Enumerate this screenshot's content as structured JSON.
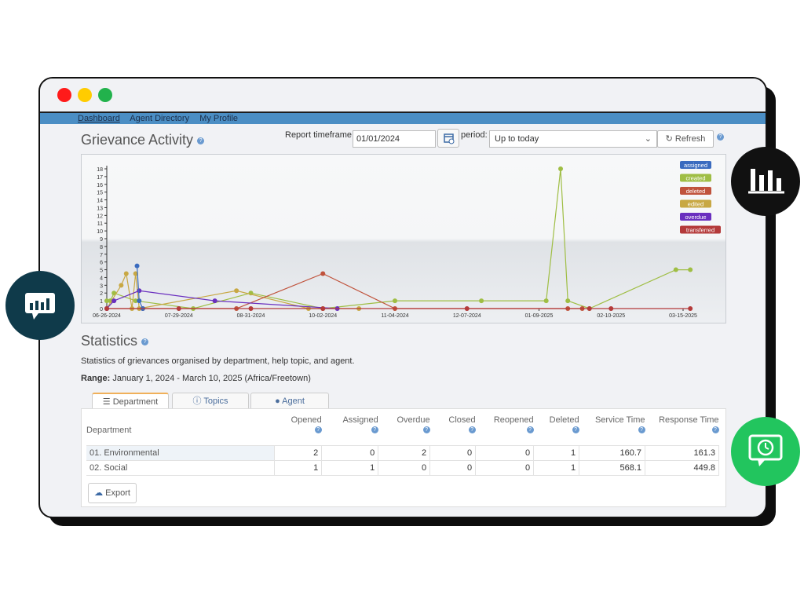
{
  "nav": {
    "items": [
      "Dashboard",
      "Agent Directory",
      "My Profile"
    ]
  },
  "page": {
    "title": "Grievance Activity",
    "timeframe_label": "Report timeframe:",
    "timeframe_value": "01/01/2024",
    "period_label": "period:",
    "period_value": "Up to today",
    "refresh_label": "Refresh",
    "help_glyph": "?"
  },
  "chart_data": {
    "type": "line",
    "x_tick_labels": [
      "06-26-2024",
      "07-29-2024",
      "08-31-2024",
      "10-02-2024",
      "11-04-2024",
      "12-07-2024",
      "01-09-2025",
      "02-10-2025",
      "03-15-2025"
    ],
    "y_ticks": [
      0,
      1,
      2,
      3,
      4,
      5,
      6,
      7,
      8,
      9,
      10,
      11,
      12,
      13,
      14,
      15,
      16,
      17,
      18
    ],
    "ylim": [
      0,
      18
    ],
    "grid": false,
    "legend_position": "top-right",
    "series": [
      {
        "name": "assigned",
        "color": "#3a6bbf"
      },
      {
        "name": "created",
        "color": "#9fbe44"
      },
      {
        "name": "deleted",
        "color": "#c0533c"
      },
      {
        "name": "edited",
        "color": "#c8a844"
      },
      {
        "name": "overdue",
        "color": "#6a2fbf"
      },
      {
        "name": "transferred",
        "color": "#b43a3a"
      }
    ]
  },
  "statistics": {
    "title": "Statistics",
    "description": "Statistics of grievances organised by department, help topic, and agent.",
    "range_label": "Range:",
    "range_value": "January 1, 2024 - March 10, 2025 (Africa/Freetown)",
    "tabs": [
      "Department",
      "Topics",
      "Agent"
    ],
    "columns": [
      "Department",
      "Opened",
      "Assigned",
      "Overdue",
      "Closed",
      "Reopened",
      "Deleted",
      "Service Time",
      "Response Time"
    ],
    "rows": [
      [
        "01. Environmental",
        "2",
        "0",
        "2",
        "0",
        "0",
        "1",
        "160.7",
        "161.3"
      ],
      [
        "02. Social",
        "1",
        "1",
        "0",
        "0",
        "0",
        "1",
        "568.1",
        "449.8"
      ]
    ],
    "export_label": "Export"
  }
}
